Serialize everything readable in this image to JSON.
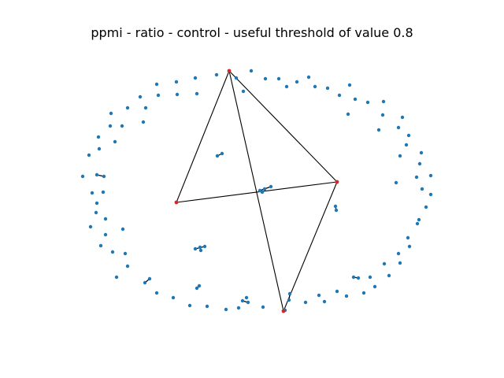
{
  "figure": {
    "title": "ppmi - ratio - control - useful threshold of value 0.8"
  },
  "colors": {
    "node": "#1f77b4",
    "highlight_node": "#d62728",
    "edge": "#000000",
    "background": "#ffffff"
  },
  "graph": {
    "highlighted_nodes": [
      "A",
      "B",
      "C",
      "D"
    ],
    "highlighted_edges": [
      [
        "A",
        "B"
      ],
      [
        "A",
        "C"
      ],
      [
        "C",
        "B"
      ],
      [
        "C",
        "D"
      ],
      [
        "B",
        "D"
      ]
    ]
  }
}
